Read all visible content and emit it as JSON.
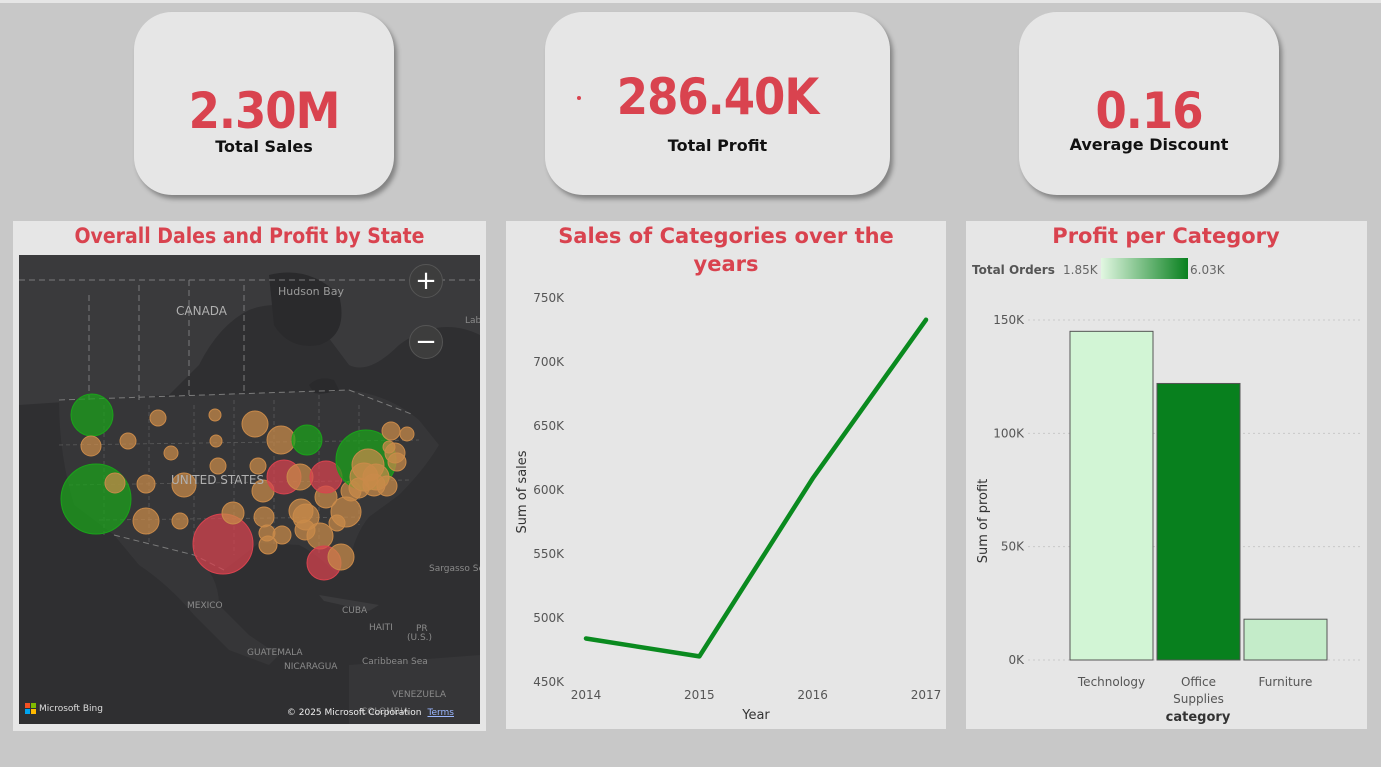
{
  "kpis": {
    "sales": {
      "value": "2.30M",
      "label": "Total Sales"
    },
    "profit": {
      "value": "286.40K",
      "label": "Total Profit"
    },
    "discount": {
      "value": "0.16",
      "label": "Average Discount"
    }
  },
  "map_panel": {
    "title": "Overall Dales and Profit by State",
    "labels": {
      "hudson_bay": "Hudson Bay",
      "canada": "CANADA",
      "united_states": "UNITED STATES",
      "mexico": "MEXICO",
      "cuba": "CUBA",
      "haiti": "HAITI",
      "pr": "PR",
      "pr_us": "(U.S.)",
      "guatemala": "GUATEMALA",
      "nicaragua": "NICARAGUA",
      "caribbean_sea": "Caribbean Sea",
      "venezuela": "VENEZUELA",
      "colombia": "COLOMBIA",
      "sargasso_sea": "Sargasso Se",
      "lab": "Lab"
    },
    "zoom_in": "+",
    "zoom_out": "−",
    "bing": "Microsoft Bing",
    "copyright": "© 2025 Microsoft Corporation",
    "terms": "Terms",
    "colors": {
      "positive": "#1aa31a",
      "neutral": "#c98a4a",
      "negative": "#d9434f"
    }
  },
  "chart_data": [
    {
      "type": "line",
      "title": "Sales of Categories over the years",
      "xlabel": "Year",
      "ylabel": "Sum of sales",
      "x": [
        "2014",
        "2015",
        "2016",
        "2017"
      ],
      "series": [
        {
          "values": [
            484000,
            470000,
            609000,
            733000
          ]
        }
      ],
      "ylim": [
        450000,
        750000
      ],
      "yticks": [
        "750K",
        "700K",
        "650K",
        "600K",
        "550K",
        "500K",
        "450K"
      ],
      "line_color": "#0a8a1f",
      "grid": false
    },
    {
      "type": "bar",
      "title": "Profit per Category",
      "xlabel": "category",
      "ylabel": "Sum of profit",
      "categories": [
        "Technology",
        "Office Supplies",
        "Furniture"
      ],
      "values": [
        145000,
        122000,
        18000
      ],
      "ylim": [
        0,
        150000
      ],
      "yticks": [
        "150K",
        "100K",
        "50K",
        "0K"
      ],
      "color_legend": {
        "title": "Total Orders",
        "min": "1.85K",
        "max": "6.03K",
        "min_color": "#e2f7e2",
        "max_color": "#08801e"
      },
      "bar_colors": [
        "#d2f5d5",
        "#08801e",
        "#c4ecc9"
      ],
      "grid": "dotted-horizontal"
    }
  ]
}
